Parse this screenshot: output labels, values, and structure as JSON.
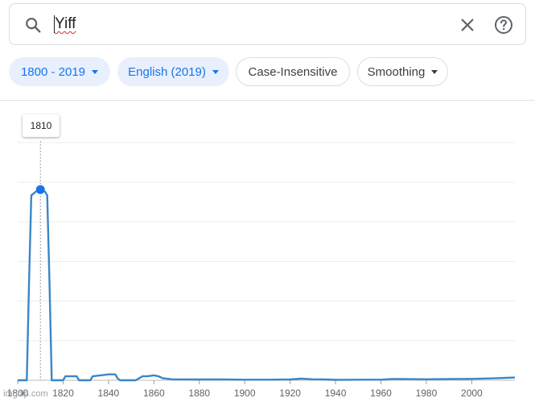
{
  "search": {
    "query": "Yiff",
    "search_icon": "search-icon",
    "clear_icon": "close-icon",
    "help_icon": "help-circle-icon"
  },
  "filters": {
    "year_range": "1800 - 2019",
    "corpus": "English (2019)",
    "case": "Case-Insensitive",
    "smoothing": "Smoothing"
  },
  "colors": {
    "accent": "#1a73e8",
    "line": "#3b86c8",
    "chip_active_bg": "#e8f0fe"
  },
  "tooltip": {
    "year": "1810"
  },
  "watermark": "imgflip.com",
  "chart_data": {
    "type": "line",
    "x_ticks": [
      "1800",
      "1820",
      "1840",
      "1860",
      "1880",
      "1900",
      "1920",
      "1940",
      "1960",
      "1980",
      "2000"
    ],
    "xlim": [
      1800,
      2019
    ],
    "ylim": [
      0,
      1
    ],
    "grid": true,
    "y_tick_labels_visible": false,
    "highlight": {
      "x": 1810,
      "y": 0.97
    },
    "series": [
      {
        "x": [
          1800,
          1804,
          1805,
          1806,
          1808,
          1810,
          1812,
          1813,
          1814,
          1815,
          1820,
          1821,
          1826,
          1827,
          1832,
          1833,
          1840,
          1841,
          1843,
          1844,
          1845,
          1846,
          1852,
          1855,
          1857,
          1860,
          1862,
          1864,
          1868,
          1875,
          1890,
          1900,
          1910,
          1920,
          1925,
          1930,
          1935,
          1940,
          1950,
          1960,
          1965,
          1970,
          1980,
          1990,
          2000,
          2010,
          2019
        ],
        "y": [
          0,
          0,
          0.5,
          0.94,
          0.96,
          0.97,
          0.96,
          0.94,
          0.5,
          0,
          0,
          0.02,
          0.02,
          0,
          0,
          0.02,
          0.03,
          0.03,
          0.03,
          0.01,
          0,
          0,
          0,
          0.02,
          0.02,
          0.025,
          0.02,
          0.01,
          0.005,
          0.004,
          0.004,
          0.003,
          0.003,
          0.004,
          0.008,
          0.005,
          0.004,
          0.002,
          0.003,
          0.003,
          0.006,
          0.006,
          0.005,
          0.006,
          0.007,
          0.01,
          0.014
        ]
      }
    ]
  }
}
